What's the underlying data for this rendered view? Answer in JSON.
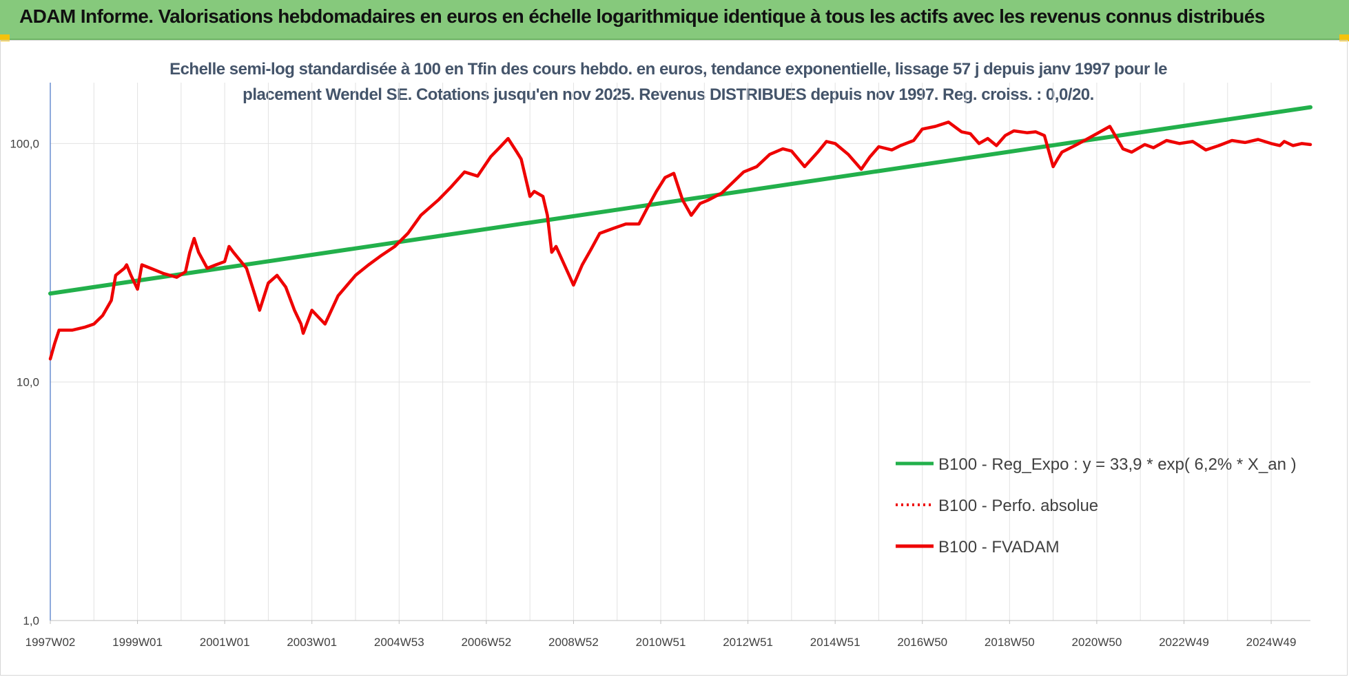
{
  "header": {
    "title": "ADAM Informe. Valorisations hebdomadaires en euros en échelle logarithmique identique à tous les actifs avec les revenus connus distribués"
  },
  "colors": {
    "header_bg": "#86c97c",
    "accent_corner": "#f4c20d",
    "series_green": "#22b04b",
    "series_red": "#ee0000"
  },
  "chart_data": {
    "type": "line",
    "title_line1": "Echelle semi-log standardisée à 100 en Tfin des cours hebdo. en euros, tendance exponentielle, lissage 57 j depuis janv 1997 pour le",
    "title_line2": "placement Wendel SE. Cotations jusqu'en nov 2025. Revenus DISTRIBUES depuis nov 1997. Reg. croiss. : 0,0/20.",
    "y_scale": "log",
    "ylim": [
      1,
      180
    ],
    "y_ticks": [
      {
        "value": 1,
        "label": "1,0"
      },
      {
        "value": 10,
        "label": "10,0"
      },
      {
        "value": 100,
        "label": "100,0"
      }
    ],
    "xlim": [
      1997.0,
      2025.9
    ],
    "x_ticks": [
      {
        "x": 1997.0,
        "label": "1997W02"
      },
      {
        "x": 1999.0,
        "label": "1999W01"
      },
      {
        "x": 2001.0,
        "label": "2001W01"
      },
      {
        "x": 2003.0,
        "label": "2003W01"
      },
      {
        "x": 2005.0,
        "label": "2004W53"
      },
      {
        "x": 2007.0,
        "label": "2006W52"
      },
      {
        "x": 2009.0,
        "label": "2008W52"
      },
      {
        "x": 2011.0,
        "label": "2010W51"
      },
      {
        "x": 2013.0,
        "label": "2012W51"
      },
      {
        "x": 2015.0,
        "label": "2014W51"
      },
      {
        "x": 2017.0,
        "label": "2016W50"
      },
      {
        "x": 2019.0,
        "label": "2018W50"
      },
      {
        "x": 2021.0,
        "label": "2020W50"
      },
      {
        "x": 2023.0,
        "label": "2022W49"
      },
      {
        "x": 2025.0,
        "label": "2024W49"
      }
    ],
    "grid": "vertical",
    "legend_position": "bottom-right",
    "series": [
      {
        "name": "B100 - Reg_Expo : y = 33,9 * exp( 6,2% *  X_an )",
        "style": "solid",
        "color": "#22b04b",
        "x": [
          1997.0,
          2025.9
        ],
        "y": [
          23.5,
          142
        ]
      },
      {
        "name": "B100 - Perfo. absolue",
        "style": "dotted",
        "color": "#ee0000",
        "x": [],
        "y": []
      },
      {
        "name": "B100 - FVADAM",
        "style": "solid",
        "color": "#ee0000",
        "x": [
          1997.0,
          1997.1,
          1997.2,
          1997.5,
          1997.8,
          1998.0,
          1998.2,
          1998.4,
          1998.5,
          1998.7,
          1998.75,
          1998.85,
          1999.0,
          1999.1,
          1999.3,
          1999.6,
          1999.9,
          2000.1,
          2000.2,
          2000.3,
          2000.4,
          2000.6,
          2000.8,
          2001.0,
          2001.1,
          2001.2,
          2001.5,
          2001.7,
          2001.8,
          2002.0,
          2002.2,
          2002.4,
          2002.6,
          2002.75,
          2002.8,
          2003.0,
          2003.3,
          2003.6,
          2004.0,
          2004.3,
          2004.6,
          2004.9,
          2005.2,
          2005.5,
          2005.9,
          2006.2,
          2006.5,
          2006.8,
          2007.1,
          2007.3,
          2007.5,
          2007.7,
          2007.8,
          2008.0,
          2008.1,
          2008.3,
          2008.4,
          2008.5,
          2008.6,
          2008.9,
          2009.0,
          2009.2,
          2009.4,
          2009.6,
          2009.9,
          2010.2,
          2010.5,
          2010.7,
          2010.9,
          2011.1,
          2011.3,
          2011.5,
          2011.7,
          2011.9,
          2012.1,
          2012.4,
          2012.7,
          2012.9,
          2013.2,
          2013.5,
          2013.8,
          2014.0,
          2014.3,
          2014.6,
          2014.8,
          2015.0,
          2015.3,
          2015.6,
          2015.8,
          2016.0,
          2016.3,
          2016.5,
          2016.8,
          2017.0,
          2017.3,
          2017.6,
          2017.9,
          2018.1,
          2018.3,
          2018.5,
          2018.7,
          2018.9,
          2019.1,
          2019.4,
          2019.6,
          2019.8,
          2020.0,
          2020.1,
          2020.2,
          2020.5,
          2020.8,
          2021.0,
          2021.3,
          2021.6,
          2021.8,
          2022.1,
          2022.3,
          2022.6,
          2022.9,
          2023.2,
          2023.5,
          2023.8,
          2024.1,
          2024.4,
          2024.7,
          2025.0,
          2025.2,
          2025.3,
          2025.5,
          2025.7,
          2025.9
        ],
        "y": [
          12.5,
          14.5,
          16.5,
          16.5,
          17.0,
          17.5,
          19.0,
          22.0,
          28.0,
          30.0,
          31.0,
          28.0,
          24.5,
          31.0,
          30.0,
          28.5,
          27.5,
          29.0,
          35.0,
          40.0,
          35.0,
          30.0,
          31.0,
          32.0,
          37.0,
          35.0,
          30.0,
          23.0,
          20.0,
          26.0,
          28.0,
          25.0,
          20.0,
          17.5,
          16.0,
          20.0,
          17.5,
          23.0,
          28.0,
          31.0,
          34.0,
          37.0,
          42.0,
          50.0,
          58.0,
          66.0,
          76.0,
          73.0,
          88.0,
          96.0,
          105.0,
          92.0,
          86.0,
          60.0,
          63.0,
          60.0,
          50.0,
          35.0,
          37.0,
          28.0,
          25.5,
          31.0,
          36.0,
          42.0,
          44.0,
          46.0,
          46.0,
          54.0,
          63.0,
          72.0,
          75.0,
          58.0,
          50.0,
          56.0,
          58.0,
          62.0,
          70.0,
          76.0,
          80.0,
          90.0,
          95.0,
          93.0,
          80.0,
          92.0,
          102.0,
          100.0,
          90.0,
          78.0,
          88.0,
          97.0,
          94.0,
          98.0,
          103.0,
          115.0,
          118.0,
          123.0,
          112.0,
          110.0,
          100.0,
          105.0,
          98.0,
          108.0,
          113.0,
          111.0,
          112.0,
          108.0,
          80.0,
          86.0,
          92.0,
          98.0,
          105.0,
          110.0,
          118.0,
          95.0,
          92.0,
          99.0,
          96.0,
          103.0,
          100.0,
          102.0,
          94.0,
          98.0,
          103.0,
          101.0,
          104.0,
          100.0,
          98.0,
          102.0,
          98.0,
          100.0,
          99.0
        ]
      }
    ]
  }
}
